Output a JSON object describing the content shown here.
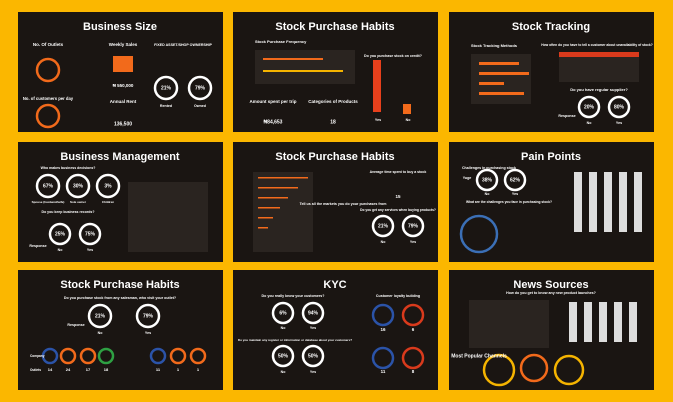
{
  "slides": [
    {
      "title": "Business Size",
      "texts": [
        "No. Of Outlets",
        "Weekly Sales",
        "FIXED ASSET/SHOP OWNERSHIP",
        "₦ 550,000",
        "21%",
        "79%",
        "Rented",
        "Owned",
        "No. of customers per day",
        "Annual Rent",
        "136,500"
      ]
    },
    {
      "title": "Stock Purchase Habits",
      "texts": [
        "Stock Purchase Frequency",
        "Do you purchase stock on credit?",
        "Amount spent per trip",
        "Categories of Products",
        "₦84,653",
        "18",
        "Yes",
        "No"
      ]
    },
    {
      "title": "Stock Tracking",
      "texts": [
        "Stock Tracking Methods",
        "How often do you have to tell a customer about unavailability of stock?",
        "Do you have regular supplier?",
        "20%",
        "80%",
        "No",
        "Yes",
        "Response"
      ]
    },
    {
      "title": "Business Management",
      "texts": [
        "Who makes business decisions?",
        "67%",
        "30%",
        "3%",
        "Spouse (husband/wife)",
        "Sole owner",
        "Children",
        "Do you keep business records?",
        "25%",
        "75%",
        "No",
        "Yes",
        "Response"
      ]
    },
    {
      "title": "Stock Purchase Habits",
      "texts": [
        "Tell us all the markets you do your purchases from",
        "Average time spent to buy a stock",
        "15",
        "Do you get any services when buying products?",
        "21%",
        "79%",
        "No",
        "Yes"
      ]
    },
    {
      "title": "Pain Points",
      "texts": [
        "Challenges in purchasing stock",
        "38%",
        "62%",
        "No",
        "Yes",
        "Yuge",
        "What are the challenges you face in purchasing stock?"
      ]
    },
    {
      "title": "Stock Purchase Habits",
      "texts": [
        "Do you purchase stock from any salesman, who visit your outlet?",
        "21%",
        "79%",
        "No",
        "Yes",
        "Response",
        "Company",
        "Outlets",
        "14",
        "24",
        "17",
        "18",
        "11",
        "1",
        "1"
      ]
    },
    {
      "title": "KYC",
      "texts": [
        "Do you really know your customers?",
        "6%",
        "94%",
        "No",
        "Yes",
        "Do you maintain any register or information or database about your customers?",
        "50%",
        "50%",
        "No",
        "Yes",
        "Customer loyalty building",
        "16",
        "6",
        "11",
        "8"
      ]
    },
    {
      "title": "News Sources",
      "texts": [
        "How do you get to know any new product launches?",
        "Most Popular Channels"
      ]
    }
  ]
}
